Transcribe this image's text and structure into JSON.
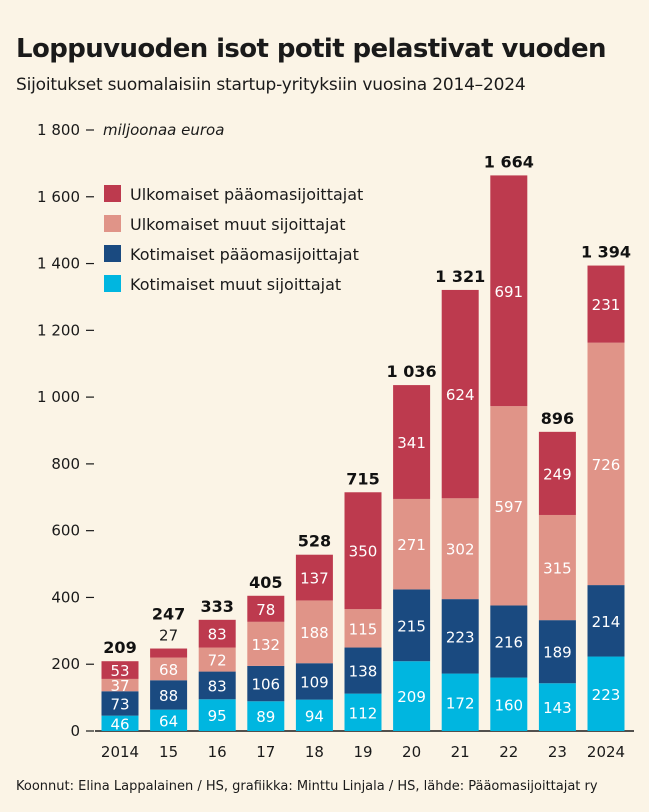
{
  "header": {
    "title": "Loppuvuoden isot potit pelastivat vuoden",
    "subtitle": "Sijoitukset suomalaisiin startup-yrityksiin vuosina 2014–2024"
  },
  "footer": {
    "source": "Koonnut: Elina Lappalainen / HS, grafiikka: Minttu Linjala / HS, lähde: Pääomasijoittajat ry"
  },
  "chart_data": {
    "type": "bar",
    "stacked": true,
    "title": "Loppuvuoden isot potit pelastivat vuoden",
    "subtitle": "Sijoitukset suomalaisiin startup-yrityksiin vuosina 2014–2024",
    "ylabel": "miljoonaa euroa",
    "ylim": [
      0,
      1800
    ],
    "yticks": [
      0,
      200,
      400,
      600,
      800,
      1000,
      1200,
      1400,
      1600,
      1800
    ],
    "ytick_labels": [
      "0",
      "200",
      "400",
      "600",
      "800",
      "1 000",
      "1 200",
      "1 400",
      "1 600",
      "1 800"
    ],
    "grid": false,
    "legend_position": "top-left",
    "categories": [
      "2014",
      "15",
      "16",
      "17",
      "18",
      "19",
      "20",
      "21",
      "22",
      "23",
      "2024"
    ],
    "series": [
      {
        "name": "Kotimaiset muut sijoittajat",
        "color": "#00b6e0",
        "label_color": "#ffffff",
        "values": [
          46,
          64,
          95,
          89,
          94,
          112,
          209,
          172,
          160,
          143,
          223
        ]
      },
      {
        "name": "Kotimaiset pääomasijoittajat",
        "color": "#1a4a80",
        "label_color": "#ffffff",
        "values": [
          73,
          88,
          83,
          106,
          109,
          138,
          215,
          223,
          216,
          189,
          214
        ]
      },
      {
        "name": "Ulkomaiset muut sijoittajat",
        "color": "#e09488",
        "label_color": "#ffffff",
        "values": [
          37,
          68,
          72,
          132,
          188,
          115,
          271,
          302,
          597,
          315,
          726
        ]
      },
      {
        "name": "Ulkomaiset pääomasijoittajat",
        "color": "#bd3a4e",
        "label_color": "#ffffff",
        "values": [
          53,
          27,
          83,
          78,
          137,
          350,
          341,
          624,
          691,
          249,
          231
        ]
      }
    ],
    "totals": [
      209,
      247,
      333,
      405,
      528,
      715,
      1036,
      1321,
      1664,
      896,
      1394
    ],
    "total_labels": [
      "209",
      "247",
      "333",
      "405",
      "528",
      "715",
      "1 036",
      "1 321",
      "1 664",
      "896",
      "1 394"
    ],
    "legend_order": [
      3,
      2,
      1,
      0
    ]
  }
}
